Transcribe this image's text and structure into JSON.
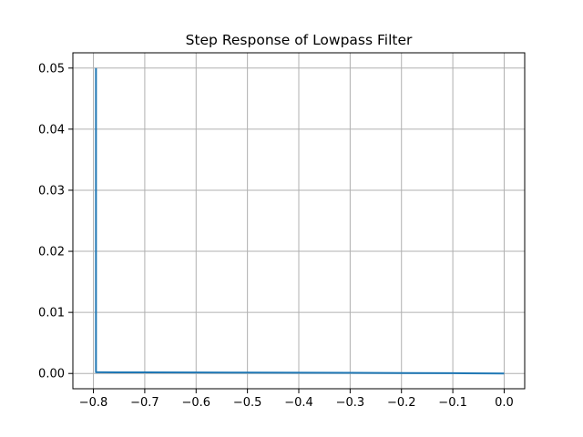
{
  "chart_data": {
    "type": "line",
    "title": "Step Response of Lowpass Filter",
    "xlabel": "",
    "ylabel": "",
    "xlim": [
      -0.84,
      0.04
    ],
    "ylim": [
      -0.0025,
      0.0525
    ],
    "x_ticks": [
      -0.8,
      -0.7,
      -0.6,
      -0.5,
      -0.4,
      -0.3,
      -0.2,
      -0.1,
      0.0
    ],
    "x_tick_labels": [
      "−0.8",
      "−0.7",
      "−0.6",
      "−0.5",
      "−0.4",
      "−0.3",
      "−0.2",
      "−0.1",
      "0.0"
    ],
    "y_ticks": [
      0.0,
      0.01,
      0.02,
      0.03,
      0.04,
      0.05
    ],
    "y_tick_labels": [
      "0.00",
      "0.01",
      "0.02",
      "0.03",
      "0.04",
      "0.05"
    ],
    "grid": true,
    "colors": {
      "line": "#1f77b4",
      "grid": "#b0b0b0",
      "axes": "#000000"
    },
    "series": [
      {
        "x": [
          -0.795,
          -0.795,
          -0.79,
          -0.7,
          -0.6,
          -0.5,
          -0.4,
          -0.3,
          -0.2,
          -0.1,
          0.0
        ],
        "y": [
          0.05,
          0.0002,
          0.0002,
          0.00018,
          0.00016,
          0.00014,
          0.00012,
          0.0001,
          8e-05,
          5e-05,
          0.0
        ]
      }
    ]
  }
}
